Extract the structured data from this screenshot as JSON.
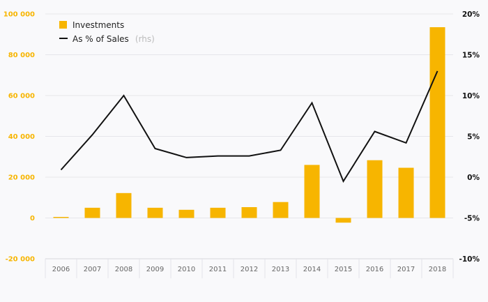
{
  "chart_data": {
    "type": "bar+line",
    "categories": [
      "2006",
      "2007",
      "2008",
      "2009",
      "2010",
      "2011",
      "2012",
      "2013",
      "2014",
      "2015",
      "2016",
      "2017",
      "2018"
    ],
    "series": [
      {
        "name": "Investments",
        "type": "bar",
        "axis": "left",
        "values": [
          500,
          5000,
          12200,
          5000,
          4000,
          5000,
          5300,
          7800,
          26000,
          -2300,
          28300,
          24600,
          93500
        ]
      },
      {
        "name": "As % of Sales",
        "name_suffix": "(rhs)",
        "type": "line",
        "axis": "right",
        "values": [
          0.9,
          5.2,
          10.0,
          3.5,
          2.4,
          2.6,
          2.6,
          3.3,
          9.1,
          -0.5,
          5.6,
          4.2,
          13.0
        ]
      }
    ],
    "left_axis": {
      "ylim": [
        -20000,
        100000
      ],
      "ticks": [
        -20000,
        0,
        20000,
        40000,
        60000,
        80000,
        100000
      ],
      "tick_labels": [
        "-20 000",
        "0",
        "20 000",
        "40 000",
        "60 000",
        "80 000",
        "100 000"
      ]
    },
    "right_axis": {
      "ylim": [
        -10,
        20
      ],
      "ticks": [
        -10,
        -5,
        0,
        5,
        10,
        15,
        20
      ],
      "tick_labels": [
        "-10%",
        "-5%",
        "0%",
        "5%",
        "10%",
        "15%",
        "20%"
      ]
    },
    "grid": true,
    "legend_position": "top-left",
    "colors": {
      "bar": "#f7b500",
      "line": "#111111",
      "left_ticks": "#f7b500",
      "grid": "#e6e6ea"
    }
  }
}
